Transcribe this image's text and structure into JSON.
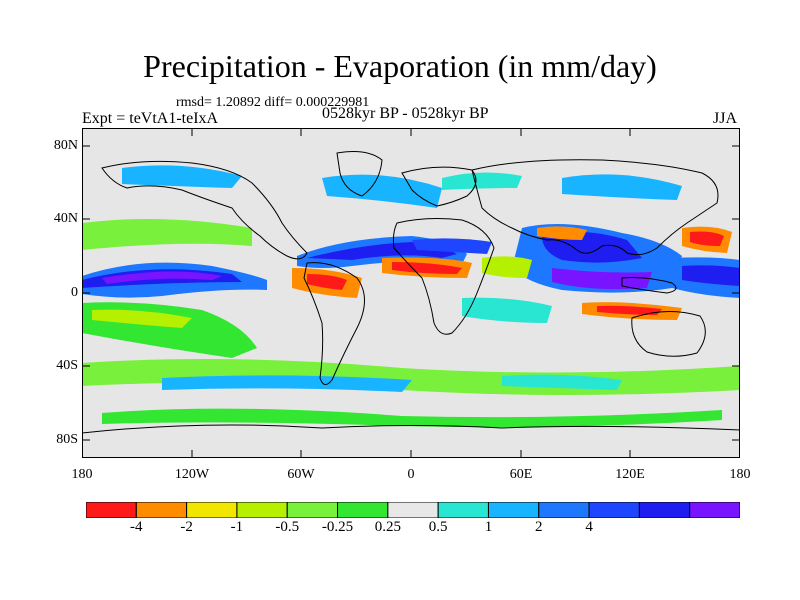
{
  "title": "Precipitation - Evaporation (in mm/day)",
  "stats": "rmsd= 1.20892 diff= 0.000229981",
  "experiment": "Expt = teVtA1-teIxA",
  "period": "0528kyr BP - 0528kyr BP",
  "season": "JJA",
  "lat_ticks": [
    "80N",
    "40N",
    "0",
    "40S",
    "80S"
  ],
  "lon_ticks": [
    "180",
    "120W",
    "60W",
    "0",
    "60E",
    "120E",
    "180"
  ],
  "colorbar": {
    "colors": [
      "#ff1a1a",
      "#ff8c00",
      "#f2e600",
      "#b4f000",
      "#78f03c",
      "#32e632",
      "#e8e8e8",
      "#28e6d2",
      "#19b4ff",
      "#1e78ff",
      "#1e46ff",
      "#1e1ef0",
      "#7814ff"
    ],
    "labels": [
      "-4",
      "-2",
      "-1",
      "-0.5",
      "-0.25",
      "0.25",
      "0.5",
      "1",
      "2",
      "4"
    ]
  },
  "map": {
    "background": "#e6e6e6",
    "lat_range": [
      -90,
      90
    ],
    "lon_range": [
      -180,
      180
    ]
  }
}
